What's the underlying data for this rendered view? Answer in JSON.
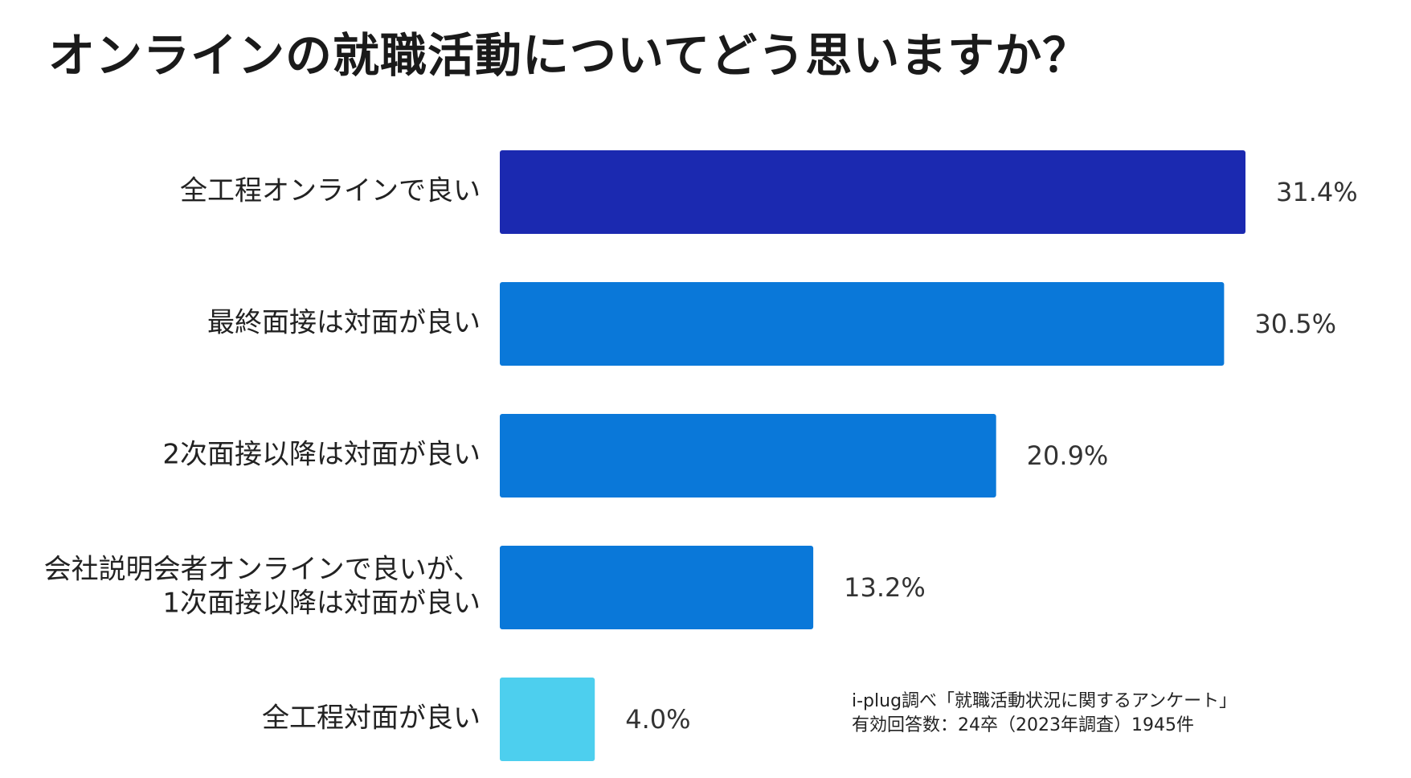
{
  "chart_data": {
    "type": "bar",
    "orientation": "horizontal",
    "title": "オンラインの就職活動についてどう思いますか？",
    "categories": [
      [
        "全工程オンラインで良い"
      ],
      [
        "最終面接は対面が良い"
      ],
      [
        "2次面接以降は対面が良い"
      ],
      [
        "会社説明会者オンラインで良いが、",
        "1次面接以降は対面が良い"
      ],
      [
        "全工程対面が良い"
      ]
    ],
    "values": [
      31.4,
      30.5,
      20.9,
      13.2,
      4.0
    ],
    "value_labels": [
      "31.4%",
      "30.5%",
      "20.9%",
      "13.2%",
      "4.0%"
    ],
    "unit": "%",
    "colors": [
      "#1b29b0",
      "#0a78d9",
      "#0a78d9",
      "#0a78d9",
      "#4dcfee"
    ],
    "xlim": [
      0,
      31.4
    ],
    "grid": false,
    "legend": "none"
  },
  "source": {
    "line1": "i-plug調べ「就職活動状況に関するアンケート」",
    "line2": "有効回答数：24卒（2023年調査）1945件"
  }
}
